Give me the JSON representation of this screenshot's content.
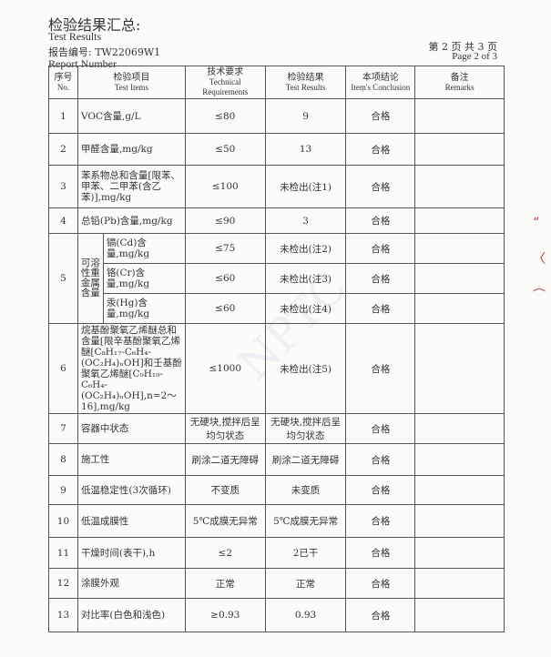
{
  "header": {
    "title": "检验结果汇总:",
    "title_en": "Test Results",
    "report_number_label": "报告编号: TW22069W1",
    "report_number_label_en": "Report Number",
    "page": "第 2 页 共 3 页",
    "page_en": "Page 2 of 3"
  },
  "columns": {
    "no": "序号",
    "no_en": "No.",
    "item": "检验项目",
    "item_en": "Test Items",
    "req": "技术要求",
    "req_en": "Technical Requirements",
    "result": "检验结果",
    "result_en": "Test Results",
    "concl": "本项结论",
    "concl_en": "Item's Conclusion",
    "remarks": "备注",
    "remarks_en": "Remarks"
  },
  "rows": [
    {
      "no": "1",
      "item": "VOC含量,g/L",
      "req": "≤80",
      "result": "9",
      "concl": "合格"
    },
    {
      "no": "2",
      "item": "甲醛含量,mg/kg",
      "req": "≤50",
      "result": "13",
      "concl": "合格"
    },
    {
      "no": "3",
      "item": "苯系物总和含量[限苯、甲苯、二甲苯(含乙苯)],mg/kg",
      "req": "≤100",
      "result": "未检出(注1)",
      "concl": "合格"
    },
    {
      "no": "4",
      "item": "总铅(Pb)含量,mg/kg",
      "req": "≤90",
      "result": "3",
      "concl": "合格"
    },
    {
      "no": "5",
      "group": "可溶性重金属含量",
      "sub": [
        {
          "item": "镉(Cd)含量,mg/kg",
          "req": "≤75",
          "result": "未检出(注2)",
          "concl": "合格"
        },
        {
          "item": "铬(Cr)含量,mg/kg",
          "req": "≤60",
          "result": "未检出(注3)",
          "concl": "合格"
        },
        {
          "item": "汞(Hg)含量,mg/kg",
          "req": "≤60",
          "result": "未检出(注4)",
          "concl": "合格"
        }
      ]
    },
    {
      "no": "6",
      "item": "烷基酚聚氧乙烯醚总和含量[限辛基酚聚氧乙烯醚[C₈H₁₇-C₆H₄-(OC₂H₄)ₙOH]和壬基酚聚氧乙烯醚[C₉H₁₉-C₆H₄-(OC₂H₄)ₙOH],n=2～16],mg/kg",
      "req": "≤1000",
      "result": "未检出(注5)",
      "concl": "合格"
    },
    {
      "no": "7",
      "item": "容器中状态",
      "req": "无硬块,搅拌后呈均匀状态",
      "result": "无硬块,搅拌后呈均匀状态",
      "concl": "合格"
    },
    {
      "no": "8",
      "item": "施工性",
      "req": "刷涂二道无障碍",
      "result": "刷涂二道无障碍",
      "concl": "合格"
    },
    {
      "no": "9",
      "item": "低温稳定性(3次循环)",
      "req": "不变质",
      "result": "未变质",
      "concl": "合格"
    },
    {
      "no": "10",
      "item": "低温成膜性",
      "req": "5℃成膜无异常",
      "result": "5℃成膜无异常",
      "concl": "合格"
    },
    {
      "no": "11",
      "item": "干燥时间(表干),h",
      "req": "≤2",
      "result": "2已干",
      "concl": "合格"
    },
    {
      "no": "12",
      "item": "涂膜外观",
      "req": "正常",
      "result": "正常",
      "concl": "合格"
    },
    {
      "no": "13",
      "item": "对比率(白色和浅色)",
      "req": "≥0.93",
      "result": "0.93",
      "concl": "合格"
    }
  ]
}
